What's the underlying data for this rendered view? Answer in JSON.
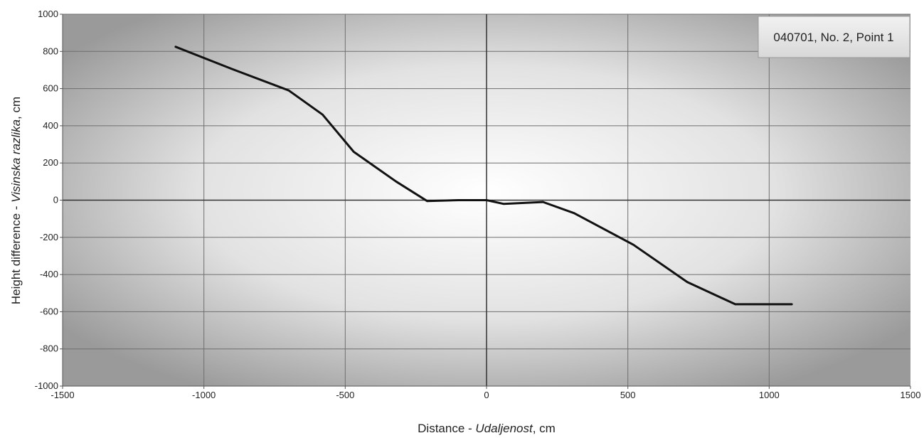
{
  "chart_data": {
    "type": "line",
    "title": "",
    "xlabel": {
      "prefix": "Distance - ",
      "italic": "Udaljenost",
      "suffix": ", cm"
    },
    "ylabel": {
      "prefix": "Height difference - ",
      "italic": "Visinska razlika",
      "suffix": ", cm"
    },
    "xlim": [
      -1500,
      1500
    ],
    "ylim": [
      -1000,
      1000
    ],
    "x_ticks": [
      -1500,
      -1000,
      -500,
      0,
      500,
      1000,
      1500
    ],
    "y_ticks": [
      -1000,
      -800,
      -600,
      -400,
      -200,
      0,
      200,
      400,
      600,
      800,
      1000
    ],
    "grid": true,
    "legend_position": "top-right",
    "series": [
      {
        "name": "040701, No. 2, Point 1",
        "color": "#111111",
        "x": [
          -1100,
          -900,
          -700,
          -580,
          -470,
          -320,
          -210,
          -100,
          0,
          60,
          200,
          310,
          520,
          710,
          880,
          1080
        ],
        "y": [
          825,
          705,
          590,
          460,
          260,
          100,
          -5,
          0,
          0,
          -20,
          -10,
          -70,
          -240,
          -440,
          -560,
          -560
        ]
      }
    ]
  }
}
